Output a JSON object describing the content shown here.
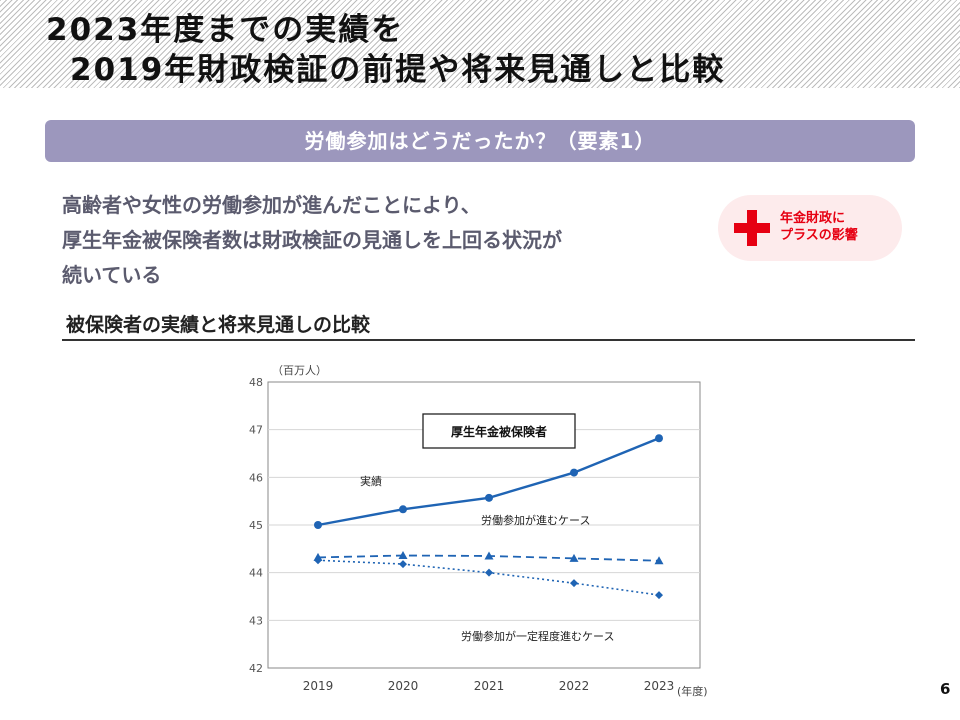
{
  "header": {
    "title_line1": "2023年度までの実績を",
    "title_line2": "2019年財政検証の前提や将来見通しと比較"
  },
  "banner": {
    "label": "労働参加はどうだったか？（要素1）"
  },
  "lead": {
    "line1": "高齢者や女性の労働参加が進んだことにより、",
    "line2": "厚生年金被保険者数は財政検証の見通しを上回る状況が",
    "line3": "続いている"
  },
  "badge": {
    "icon": "plus-icon",
    "color": "#e60012",
    "line1": "年金財政に",
    "line2": "プラスの影響"
  },
  "section": {
    "title": "被保険者の実績と将来見通しの比較"
  },
  "chart_data": {
    "type": "line",
    "title": "厚生年金被保険者",
    "yunit": "（百万人）",
    "xunit": "(年度)",
    "x": [
      "2019",
      "2020",
      "2021",
      "2022",
      "2023"
    ],
    "ylim": [
      42,
      48
    ],
    "yticks": [
      42,
      43,
      44,
      45,
      46,
      47,
      48
    ],
    "grid": true,
    "series": [
      {
        "name": "実績",
        "values": [
          45.0,
          45.33,
          45.57,
          46.1,
          46.82
        ],
        "color": "#1f64b4",
        "style": "solid",
        "marker": "circle"
      },
      {
        "name": "労働参加が進むケース",
        "values": [
          44.32,
          44.36,
          44.35,
          44.3,
          44.25
        ],
        "color": "#1f64b4",
        "style": "dashed",
        "marker": "triangle"
      },
      {
        "name": "労働参加が一定程度進むケース",
        "values": [
          44.26,
          44.18,
          44.0,
          43.78,
          43.53
        ],
        "color": "#1f64b4",
        "style": "dotted",
        "marker": "diamond"
      }
    ]
  },
  "page": {
    "number": "6"
  }
}
